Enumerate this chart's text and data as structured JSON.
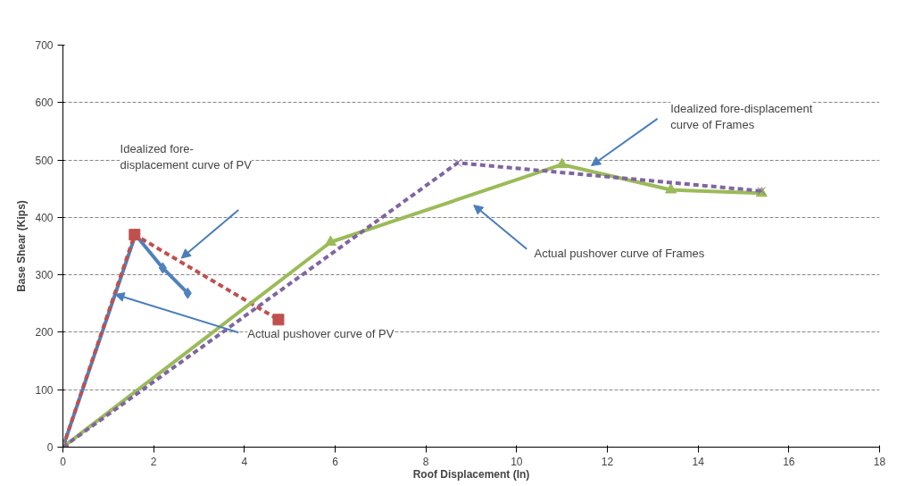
{
  "chart_data": {
    "type": "line",
    "xlabel": "Roof Displacement (In)",
    "ylabel": "Base Shear (Kips)",
    "xlim": [
      0,
      18
    ],
    "xticks": [
      0,
      2,
      4,
      6,
      8,
      10,
      12,
      14,
      16,
      18
    ],
    "ylim": [
      0,
      700
    ],
    "yticks": [
      0,
      100,
      200,
      300,
      400,
      500,
      600,
      700
    ],
    "grid": "y",
    "series": [
      {
        "color": "#4f81bd",
        "x": [
          0,
          1.6,
          2.2,
          2.75
        ],
        "values": [
          0,
          370,
          312,
          268
        ],
        "marker": "diamond",
        "line_style": "solid"
      },
      {
        "color": "#c0504d",
        "x": [
          0,
          1.58,
          4.75
        ],
        "values": [
          0,
          370,
          222
        ],
        "marker": "square",
        "line_style": "dashed"
      },
      {
        "color": "#9bbb59",
        "x": [
          0,
          5.9,
          11,
          13.4,
          15.4
        ],
        "values": [
          0,
          357,
          492,
          448,
          442
        ],
        "marker": "triangle",
        "line_style": "solid"
      },
      {
        "color": "#8064a2",
        "x": [
          0,
          8.7,
          15.4
        ],
        "values": [
          0,
          495,
          446
        ],
        "marker": "cross",
        "line_style": "dashed"
      }
    ],
    "annotations": [
      "Idealized fore-\ndisplacement curve of PV",
      {
        "text": "Actual pushover curve of PV",
        "x": 1.15,
        "y": 266
      },
      "Idealized fore-displacement\ncurve of Frames",
      "Actual pushover curve of Frames"
    ]
  }
}
